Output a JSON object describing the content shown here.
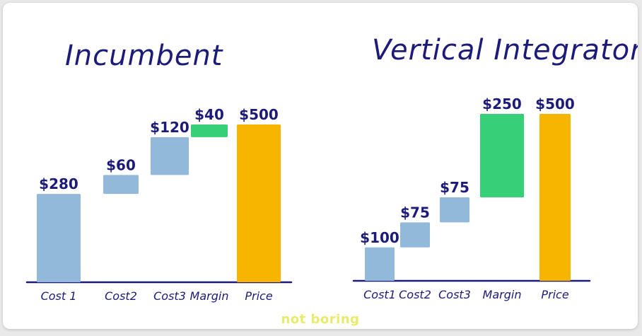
{
  "brand_text": "not boring",
  "chart_data": [
    {
      "type": "bar",
      "subtype": "waterfall",
      "title": "Incumbent",
      "categories": [
        "Cost 1",
        "Cost2",
        "Cost3",
        "Margin",
        "Price"
      ],
      "values": [
        280,
        60,
        120,
        40,
        500
      ],
      "value_labels": [
        "$280",
        "$60",
        "$120",
        "$40",
        "$500"
      ],
      "ylim": [
        0,
        540
      ],
      "colors": [
        "#93b9da",
        "#93b9da",
        "#93b9da",
        "#37cf78",
        "#f7b500"
      ],
      "grid": false,
      "legend": "none"
    },
    {
      "type": "bar",
      "subtype": "waterfall",
      "title": "Vertical Integrator",
      "categories": [
        "Cost1",
        "Cost2",
        "Cost3",
        "Margin",
        "Price"
      ],
      "values": [
        100,
        75,
        75,
        250,
        500
      ],
      "value_labels": [
        "$100",
        "$75",
        "$75",
        "$250",
        "$500"
      ],
      "ylim": [
        0,
        540
      ],
      "colors": [
        "#93b9da",
        "#93b9da",
        "#93b9da",
        "#37cf78",
        "#f7b500"
      ],
      "grid": false,
      "legend": "none"
    }
  ]
}
